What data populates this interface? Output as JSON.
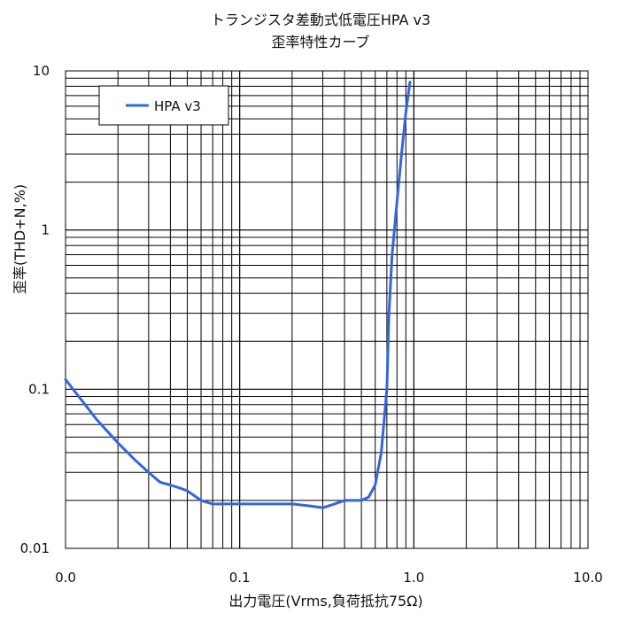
{
  "chart_data": {
    "type": "line",
    "title": "トランジスタ差動式低電圧HPA v3",
    "subtitle": "歪率特性カーブ",
    "xlabel": "出力電圧(Vrms,負荷抵抗75Ω)",
    "ylabel": "歪率(THD+N,%)",
    "x_scale": "log",
    "y_scale": "log",
    "xlim": [
      0.01,
      10
    ],
    "ylim": [
      0.01,
      10
    ],
    "x_tick_labels": [
      "0.0",
      "0.1",
      "1.0",
      "10.0"
    ],
    "y_tick_labels": [
      "0.01",
      "0.1",
      "1",
      "10"
    ],
    "grid": true,
    "legend": "top-left",
    "series": [
      {
        "name": "HPA v3",
        "color": "#3366dd",
        "x": [
          0.01,
          0.015,
          0.02,
          0.025,
          0.03,
          0.035,
          0.04,
          0.045,
          0.05,
          0.06,
          0.07,
          0.08,
          0.09,
          0.1,
          0.15,
          0.2,
          0.25,
          0.3,
          0.35,
          0.4,
          0.45,
          0.5,
          0.55,
          0.6,
          0.65,
          0.7,
          0.72,
          0.75,
          0.8,
          0.85,
          0.9,
          0.95
        ],
        "y": [
          0.115,
          0.065,
          0.046,
          0.036,
          0.03,
          0.026,
          0.025,
          0.024,
          0.023,
          0.02,
          0.019,
          0.019,
          0.019,
          0.019,
          0.019,
          0.019,
          0.0185,
          0.018,
          0.019,
          0.02,
          0.02,
          0.02,
          0.021,
          0.025,
          0.04,
          0.1,
          0.3,
          0.7,
          1.5,
          3.0,
          5.5,
          8.5
        ]
      }
    ]
  }
}
